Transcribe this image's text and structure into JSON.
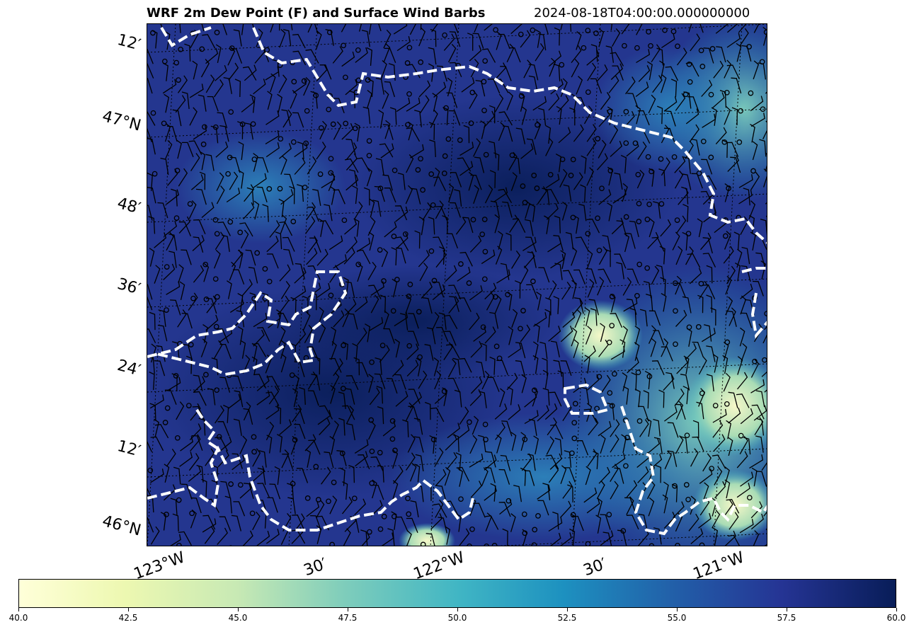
{
  "title": {
    "main": "WRF 2m Dew Point (F) and Surface Wind Barbs",
    "time": "2024-08-18T04:00:00.000000000"
  },
  "axes": {
    "lat_labels": [
      "12′",
      "47°N",
      "48′",
      "36′",
      "24′",
      "12′",
      "46°N"
    ],
    "lon_labels": [
      "123°W",
      "30′",
      "122°W",
      "30′",
      "121°W"
    ]
  },
  "colorbar": {
    "colormap": "YlGnBu",
    "range": [
      40.0,
      60.0
    ],
    "tick_labels": [
      "40.0",
      "42.5",
      "45.0",
      "47.5",
      "50.0",
      "52.5",
      "55.0",
      "57.5",
      "60.0"
    ]
  },
  "colors": {
    "coastline": "#ffffff",
    "barbs": "#000000",
    "gridlines": "#000000"
  }
}
